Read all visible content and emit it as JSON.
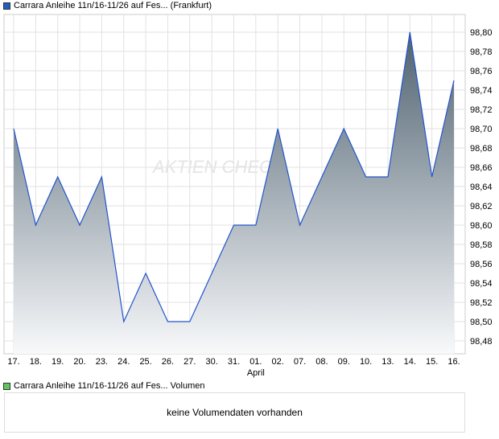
{
  "price_legend": {
    "label": "Carrara Anleihe 11n/16-11/26 auf Fes... (Frankfurt)",
    "color": "#1f5fbf"
  },
  "volume_legend": {
    "label": "Carrara Anleihe 11n/16-11/26 auf Fes... Volumen",
    "color": "#5cc85c"
  },
  "volume_message": "keine Volumendaten vorhanden",
  "watermark": "AKTIEN CHECK",
  "chart_data": {
    "type": "area",
    "title": "Carrara Anleihe 11n/16-11/26 auf Fes... (Frankfurt)",
    "categories": [
      "17.",
      "18.",
      "19.",
      "20.",
      "23.",
      "24.",
      "25.",
      "26.",
      "27.",
      "30.",
      "31.",
      "01.",
      "02.",
      "07.",
      "08.",
      "09.",
      "10.",
      "13.",
      "14.",
      "15.",
      "16."
    ],
    "month_label": {
      "at": "01.",
      "text": "April"
    },
    "values": [
      98.7,
      98.6,
      98.65,
      98.6,
      98.65,
      98.5,
      98.55,
      98.5,
      98.5,
      98.55,
      98.6,
      98.6,
      98.7,
      98.6,
      98.65,
      98.7,
      98.65,
      98.65,
      98.8,
      98.65,
      98.75
    ],
    "ylim": [
      98.46,
      98.82
    ],
    "yticks": [
      "98,48",
      "98,50",
      "98,52",
      "98,54",
      "98,56",
      "98,58",
      "98,60",
      "98,62",
      "98,64",
      "98,66",
      "98,68",
      "98,70",
      "98,72",
      "98,74",
      "98,76",
      "98,78",
      "98,80"
    ],
    "ytick_values": [
      98.48,
      98.5,
      98.52,
      98.54,
      98.56,
      98.58,
      98.6,
      98.62,
      98.64,
      98.66,
      98.68,
      98.7,
      98.72,
      98.74,
      98.76,
      98.78,
      98.8
    ],
    "grid": true,
    "line_color": "#2255cc"
  }
}
